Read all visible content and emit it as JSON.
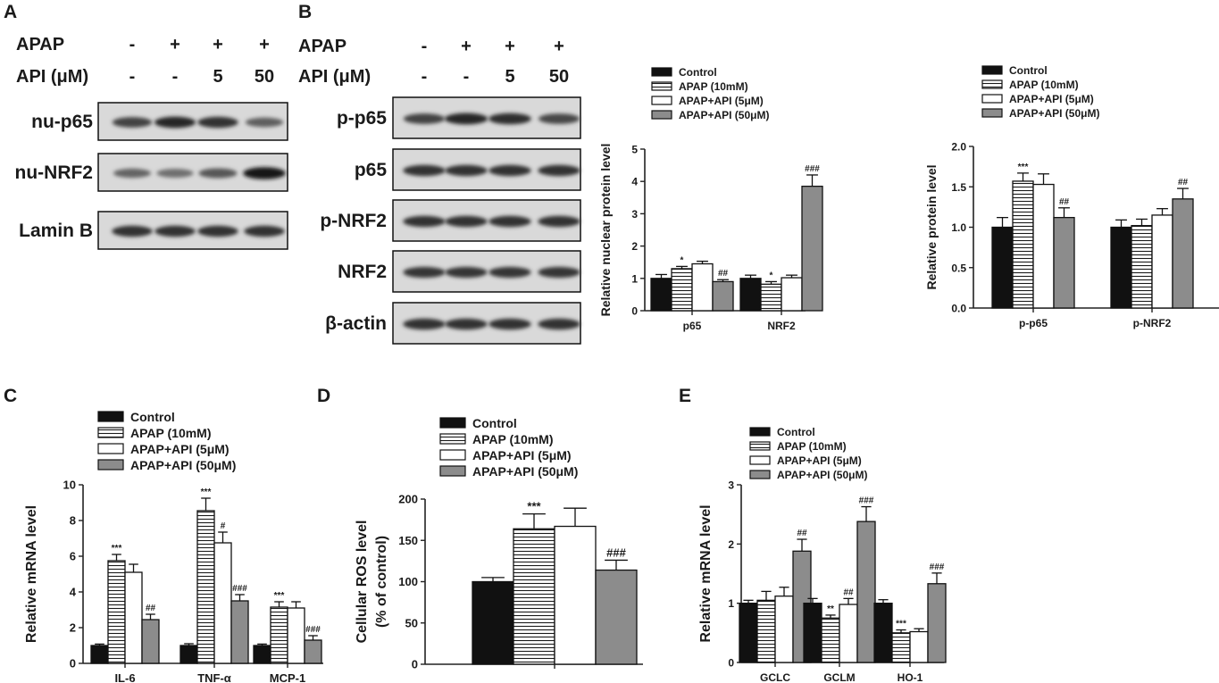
{
  "panel_labels": [
    "A",
    "B",
    "C",
    "D",
    "E"
  ],
  "blot_A": {
    "treatments": [
      {
        "label": "APAP",
        "values": [
          "-",
          "+",
          "+",
          "+"
        ]
      },
      {
        "label": "API (μM)",
        "values": [
          "-",
          "-",
          "5",
          "50"
        ]
      }
    ],
    "rows": [
      {
        "label": "nu-p65",
        "intensity": [
          0.72,
          0.85,
          0.8,
          0.58
        ]
      },
      {
        "label": "nu-NRF2",
        "intensity": [
          0.55,
          0.5,
          0.62,
          0.95
        ]
      },
      {
        "label": "Lamin B",
        "intensity": [
          0.8,
          0.8,
          0.8,
          0.8
        ]
      }
    ]
  },
  "blot_B": {
    "treatments": [
      {
        "label": "APAP",
        "values": [
          "-",
          "+",
          "+",
          "+"
        ]
      },
      {
        "label": "API (μM)",
        "values": [
          "-",
          "-",
          "5",
          "50"
        ]
      }
    ],
    "rows": [
      {
        "label": "p-p65",
        "intensity": [
          0.72,
          0.85,
          0.82,
          0.7
        ]
      },
      {
        "label": "p65",
        "intensity": [
          0.8,
          0.8,
          0.8,
          0.8
        ]
      },
      {
        "label": "p-NRF2",
        "intensity": [
          0.8,
          0.8,
          0.8,
          0.8
        ]
      },
      {
        "label": "NRF2",
        "intensity": [
          0.78,
          0.78,
          0.78,
          0.78
        ]
      },
      {
        "label": "β-actin",
        "intensity": [
          0.8,
          0.8,
          0.8,
          0.8
        ]
      }
    ]
  },
  "colors": {
    "control": "#111111",
    "apap": "#ffffff",
    "api5": "#ffffff",
    "api50": "#8c8c8c",
    "axis": "#222222"
  },
  "chart_data": [
    {
      "id": "B1",
      "type": "bar",
      "ylabel": "Relative nuclear protein level",
      "categories": [
        "p65",
        "NRF2"
      ],
      "ylim": [
        0,
        5
      ],
      "yticks": [
        0,
        1,
        2,
        3,
        4,
        5
      ],
      "legend_position": "top",
      "series": [
        {
          "name": "Control",
          "pattern": "solid-black",
          "values": [
            1.0,
            1.0
          ],
          "errors": [
            0.12,
            0.1
          ],
          "annotations": [
            "",
            ""
          ]
        },
        {
          "name": "APAP (10mM)",
          "pattern": "hatch",
          "values": [
            1.3,
            0.82
          ],
          "errors": [
            0.07,
            0.08
          ],
          "annotations": [
            "*",
            "*"
          ]
        },
        {
          "name": "APAP+API (5μM)",
          "pattern": "white",
          "values": [
            1.45,
            1.02
          ],
          "errors": [
            0.08,
            0.08
          ],
          "annotations": [
            "",
            ""
          ]
        },
        {
          "name": "APAP+API (50μM)",
          "pattern": "gray",
          "values": [
            0.9,
            3.85
          ],
          "errors": [
            0.06,
            0.35
          ],
          "annotations": [
            "##",
            "###"
          ]
        }
      ]
    },
    {
      "id": "B2",
      "type": "bar",
      "ylabel": "Relative protein level",
      "categories": [
        "p-p65",
        "p-NRF2"
      ],
      "ylim": [
        0,
        2.0
      ],
      "yticks": [
        "0.0",
        "0.5",
        "1.0",
        "1.5",
        "2.0"
      ],
      "legend_position": "top",
      "series": [
        {
          "name": "Control",
          "pattern": "solid-black",
          "values": [
            1.0,
            1.0
          ],
          "errors": [
            0.12,
            0.09
          ],
          "annotations": [
            "",
            ""
          ]
        },
        {
          "name": "APAP (10mM)",
          "pattern": "hatch",
          "values": [
            1.57,
            1.02
          ],
          "errors": [
            0.1,
            0.08
          ],
          "annotations": [
            "***",
            ""
          ]
        },
        {
          "name": "APAP+API (5μM)",
          "pattern": "white",
          "values": [
            1.53,
            1.15
          ],
          "errors": [
            0.13,
            0.08
          ],
          "annotations": [
            "",
            ""
          ]
        },
        {
          "name": "APAP+API (50μM)",
          "pattern": "gray",
          "values": [
            1.12,
            1.35
          ],
          "errors": [
            0.12,
            0.13
          ],
          "annotations": [
            "##",
            "##"
          ]
        }
      ]
    },
    {
      "id": "C",
      "type": "bar",
      "ylabel": "Relative mRNA level",
      "categories": [
        "IL-6",
        "TNF-α",
        "MCP-1"
      ],
      "ylim": [
        0,
        10
      ],
      "yticks": [
        0,
        2,
        4,
        6,
        8,
        10
      ],
      "legend_position": "top",
      "series": [
        {
          "name": "Control",
          "pattern": "solid-black",
          "values": [
            1.0,
            1.0,
            1.0
          ],
          "errors": [
            0.08,
            0.1,
            0.08
          ],
          "annotations": [
            "",
            "",
            ""
          ]
        },
        {
          "name": "APAP (10mM)",
          "pattern": "hatch",
          "values": [
            5.75,
            8.55,
            3.15
          ],
          "errors": [
            0.35,
            0.7,
            0.3
          ],
          "annotations": [
            "***",
            "***",
            "***"
          ]
        },
        {
          "name": "APAP+API (5μM)",
          "pattern": "white",
          "values": [
            5.1,
            6.75,
            3.1
          ],
          "errors": [
            0.45,
            0.6,
            0.35
          ],
          "annotations": [
            "",
            "#",
            ""
          ]
        },
        {
          "name": "APAP+API (50μM)",
          "pattern": "gray",
          "values": [
            2.45,
            3.5,
            1.3
          ],
          "errors": [
            0.3,
            0.35,
            0.25
          ],
          "annotations": [
            "##",
            "###",
            "###"
          ]
        }
      ]
    },
    {
      "id": "D",
      "type": "bar",
      "ylabel": [
        "Cellular ROS level",
        "(% of control)"
      ],
      "categories": [
        ""
      ],
      "ylim": [
        0,
        200
      ],
      "yticks": [
        0,
        50,
        100,
        150,
        200
      ],
      "legend_position": "top",
      "series": [
        {
          "name": "Control",
          "pattern": "solid-black",
          "values": [
            100
          ],
          "errors": [
            5
          ],
          "annotations": [
            ""
          ]
        },
        {
          "name": "APAP (10mM)",
          "pattern": "hatch",
          "values": [
            164
          ],
          "errors": [
            18
          ],
          "annotations": [
            "***"
          ]
        },
        {
          "name": "APAP+API (5μM)",
          "pattern": "white",
          "values": [
            167
          ],
          "errors": [
            22
          ],
          "annotations": [
            ""
          ]
        },
        {
          "name": "APAP+API (50μM)",
          "pattern": "gray",
          "values": [
            114
          ],
          "errors": [
            12
          ],
          "annotations": [
            "###"
          ]
        }
      ]
    },
    {
      "id": "E",
      "type": "bar",
      "ylabel": "Relative mRNA level",
      "categories": [
        "GCLC",
        "GCLM",
        "HO-1"
      ],
      "ylim": [
        0,
        3
      ],
      "yticks": [
        0,
        1,
        2,
        3
      ],
      "legend_position": "top",
      "series": [
        {
          "name": "Control",
          "pattern": "solid-black",
          "values": [
            1.0,
            1.0,
            1.0
          ],
          "errors": [
            0.05,
            0.08,
            0.06
          ],
          "annotations": [
            "",
            "",
            ""
          ]
        },
        {
          "name": "APAP (10mM)",
          "pattern": "hatch",
          "values": [
            1.05,
            0.75,
            0.5
          ],
          "errors": [
            0.15,
            0.05,
            0.05
          ],
          "annotations": [
            "",
            "**",
            "***"
          ]
        },
        {
          "name": "APAP+API (5μM)",
          "pattern": "white",
          "values": [
            1.12,
            0.98,
            0.52
          ],
          "errors": [
            0.15,
            0.1,
            0.05
          ],
          "annotations": [
            "",
            "##",
            ""
          ]
        },
        {
          "name": "APAP+API (50μM)",
          "pattern": "gray",
          "values": [
            1.88,
            2.38,
            1.33
          ],
          "errors": [
            0.2,
            0.25,
            0.18
          ],
          "annotations": [
            "##",
            "###",
            "###"
          ]
        }
      ]
    }
  ]
}
